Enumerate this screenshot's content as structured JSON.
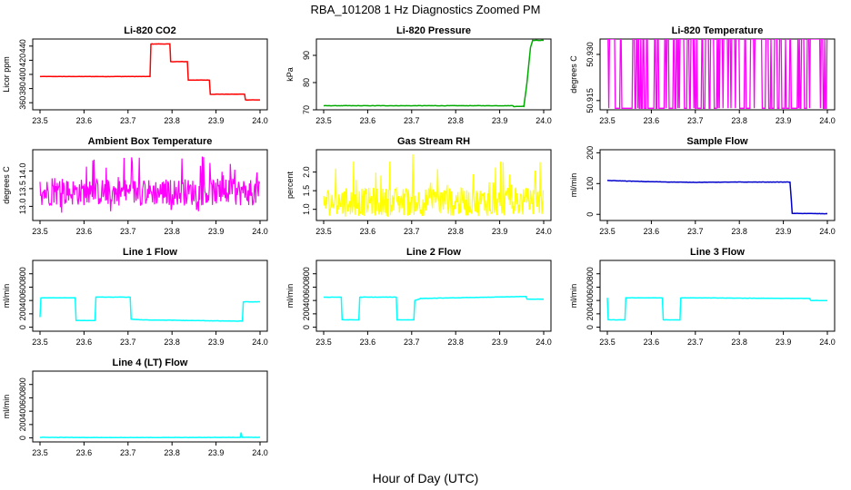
{
  "figure": {
    "title": "RBA_101208  1 Hz Diagnostics Zoomed PM",
    "xlabel": "Hour of Day (UTC)"
  },
  "chart_data": [
    {
      "type": "line",
      "title": "Li-820 CO2",
      "ylabel": "Licor ppm",
      "color": "#ff0000",
      "xlim": [
        23.5,
        24.0
      ],
      "ylim": [
        350,
        450
      ],
      "xticks": [
        "23.5",
        "23.6",
        "23.7",
        "23.8",
        "23.9",
        "24.0"
      ],
      "yticks": [
        360,
        380,
        400,
        420,
        440
      ],
      "series": [
        {
          "x": [
            23.5,
            23.75,
            23.752,
            23.795,
            23.797,
            23.835,
            23.837,
            23.885,
            23.887,
            23.965,
            23.967,
            24.0
          ],
          "y": [
            397,
            397,
            443,
            443,
            418,
            418,
            392,
            392,
            372,
            372,
            364,
            364
          ]
        }
      ]
    },
    {
      "type": "line",
      "title": "Li-820 Pressure",
      "ylabel": "kPa",
      "color": "#00aa00",
      "xlim": [
        23.5,
        24.0
      ],
      "ylim": [
        70,
        96
      ],
      "xticks": [
        "23.5",
        "23.6",
        "23.7",
        "23.8",
        "23.9",
        "24.0"
      ],
      "yticks": [
        70,
        80,
        90
      ],
      "series": [
        {
          "x": [
            23.5,
            23.93,
            23.932,
            23.955,
            23.962,
            23.97,
            23.975,
            24.0
          ],
          "y": [
            71.5,
            71.5,
            71.2,
            71.3,
            80,
            93,
            95.5,
            95.5
          ]
        }
      ]
    },
    {
      "type": "line",
      "title": "Li-820 Temperature",
      "ylabel": "degrees C",
      "color": "#ff00ff",
      "xlim": [
        23.5,
        24.0
      ],
      "ylim": [
        50.912,
        50.935
      ],
      "xticks": [
        "23.5",
        "23.6",
        "23.7",
        "23.8",
        "23.9",
        "24.0"
      ],
      "yticks": [
        "50.915",
        "50.930"
      ],
      "series": [
        {
          "levels": [
            50.9125,
            50.935
          ],
          "note": "quantized toggling between two levels"
        }
      ]
    },
    {
      "type": "line",
      "title": "Ambient Box Temperature",
      "ylabel": "degrees C",
      "color": "#ff00ff",
      "xlim": [
        23.5,
        24.0
      ],
      "ylim": [
        12.6,
        14.6
      ],
      "xticks": [
        "23.5",
        "23.6",
        "23.7",
        "23.8",
        "23.9",
        "24.0"
      ],
      "yticks": [
        "13.0",
        "13.5",
        "14.0"
      ],
      "series": [
        {
          "mean": 13.4,
          "range": [
            12.8,
            14.5
          ]
        }
      ]
    },
    {
      "type": "line",
      "title": "Gas Stream RH",
      "ylabel": "percent",
      "color": "#ffff00",
      "xlim": [
        23.5,
        24.0
      ],
      "ylim": [
        0.7,
        2.6
      ],
      "xticks": [
        "23.5",
        "23.6",
        "23.7",
        "23.8",
        "23.9",
        "24.0"
      ],
      "yticks": [
        "1.0",
        "1.5",
        "2.0"
      ],
      "series": [
        {
          "mean": 1.2,
          "range": [
            0.8,
            2.5
          ]
        }
      ]
    },
    {
      "type": "line",
      "title": "Sample Flow",
      "ylabel": "ml/min",
      "color": "#0000cc",
      "xlim": [
        23.5,
        24.0
      ],
      "ylim": [
        -20,
        210
      ],
      "xticks": [
        "23.5",
        "23.6",
        "23.7",
        "23.8",
        "23.9",
        "24.0"
      ],
      "yticks": [
        0,
        100,
        200
      ],
      "series": [
        {
          "x": [
            23.5,
            23.6,
            23.7,
            23.8,
            23.915,
            23.918,
            23.92,
            24.0
          ],
          "y": [
            110,
            106,
            104,
            105,
            105,
            50,
            3,
            2
          ]
        }
      ]
    },
    {
      "type": "line",
      "title": "Line 1 Flow",
      "ylabel": "ml/min",
      "color": "#00ffff",
      "xlim": [
        23.5,
        24.0
      ],
      "ylim": [
        -60,
        1000
      ],
      "xticks": [
        "23.5",
        "23.6",
        "23.7",
        "23.8",
        "23.9",
        "24.0"
      ],
      "yticks": [
        0,
        200,
        400,
        600,
        800
      ],
      "series": [
        {
          "x": [
            23.5,
            23.502,
            23.58,
            23.582,
            23.625,
            23.627,
            23.705,
            23.707,
            23.73,
            23.96,
            23.962,
            24.0
          ],
          "y": [
            150,
            440,
            440,
            100,
            100,
            450,
            450,
            120,
            110,
            90,
            380,
            380
          ]
        }
      ]
    },
    {
      "type": "line",
      "title": "Line 2 Flow",
      "ylabel": "ml/min",
      "color": "#00ffff",
      "xlim": [
        23.5,
        24.0
      ],
      "ylim": [
        -60,
        1000
      ],
      "xticks": [
        "23.5",
        "23.6",
        "23.7",
        "23.8",
        "23.9",
        "24.0"
      ],
      "yticks": [
        0,
        200,
        400,
        600,
        800
      ],
      "series": [
        {
          "x": [
            23.5,
            23.54,
            23.542,
            23.58,
            23.582,
            23.665,
            23.667,
            23.705,
            23.707,
            23.72,
            23.96,
            23.962,
            24.0
          ],
          "y": [
            450,
            450,
            110,
            110,
            450,
            450,
            110,
            110,
            400,
            430,
            460,
            420,
            420
          ]
        }
      ]
    },
    {
      "type": "line",
      "title": "Line 3 Flow",
      "ylabel": "ml/min",
      "color": "#00ffff",
      "xlim": [
        23.5,
        24.0
      ],
      "ylim": [
        -60,
        1000
      ],
      "xticks": [
        "23.5",
        "23.6",
        "23.7",
        "23.8",
        "23.9",
        "24.0"
      ],
      "yticks": [
        0,
        200,
        400,
        600,
        800
      ],
      "series": [
        {
          "x": [
            23.5,
            23.502,
            23.54,
            23.542,
            23.625,
            23.627,
            23.665,
            23.667,
            23.96,
            23.962,
            24.0
          ],
          "y": [
            440,
            110,
            110,
            440,
            440,
            110,
            110,
            440,
            430,
            400,
            400
          ]
        }
      ]
    },
    {
      "type": "line",
      "title": "Line 4 (LT) Flow",
      "ylabel": "ml/min",
      "color": "#00ffff",
      "xlim": [
        23.5,
        24.0
      ],
      "ylim": [
        -60,
        1000
      ],
      "xticks": [
        "23.5",
        "23.6",
        "23.7",
        "23.8",
        "23.9",
        "24.0"
      ],
      "yticks": [
        0,
        200,
        400,
        600,
        800
      ],
      "series": [
        {
          "x": [
            23.5,
            23.7,
            23.955,
            23.957,
            23.959,
            24.0
          ],
          "y": [
            8,
            5,
            8,
            80,
            10,
            8
          ]
        }
      ]
    }
  ]
}
